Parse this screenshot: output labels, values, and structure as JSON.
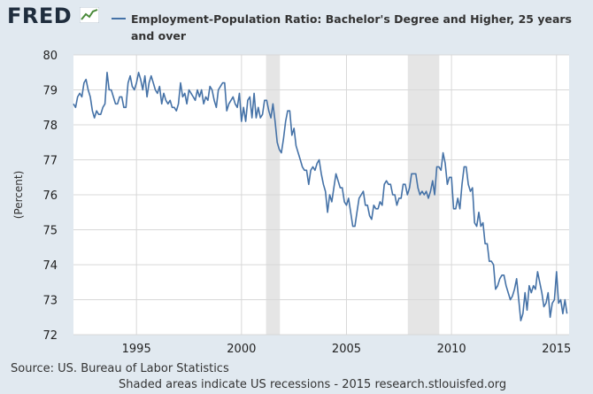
{
  "header": {
    "logo_text": "FRED",
    "logo_icon": "trend-line-icon"
  },
  "chart_data": {
    "type": "line",
    "title": "Employment-Population Ratio: Bachelor's Degree and Higher, 25 years and over",
    "ylabel": "(Percent)",
    "xlabel": "",
    "ylim": [
      72,
      80
    ],
    "xlim": [
      1992.0,
      2015.6
    ],
    "yticks": [
      72,
      73,
      74,
      75,
      76,
      77,
      78,
      79,
      80
    ],
    "xticks": [
      1995,
      2000,
      2005,
      2010,
      2015
    ],
    "grid": true,
    "line_color": "#4572a7",
    "recession_color": "#e5e5e5",
    "recessions": [
      [
        2001.17,
        2001.83
      ],
      [
        2007.92,
        2009.42
      ]
    ],
    "series": [
      {
        "name": "Employment-Population Ratio: Bachelor's Degree and Higher, 25 years and over",
        "points": [
          [
            1992.0,
            78.6
          ],
          [
            1992.1,
            78.5
          ],
          [
            1992.2,
            78.8
          ],
          [
            1992.3,
            78.9
          ],
          [
            1992.4,
            78.8
          ],
          [
            1992.5,
            79.2
          ],
          [
            1992.6,
            79.3
          ],
          [
            1992.7,
            79.0
          ],
          [
            1992.8,
            78.8
          ],
          [
            1992.9,
            78.4
          ],
          [
            1993.0,
            78.2
          ],
          [
            1993.1,
            78.4
          ],
          [
            1993.2,
            78.3
          ],
          [
            1993.3,
            78.3
          ],
          [
            1993.4,
            78.5
          ],
          [
            1993.5,
            78.6
          ],
          [
            1993.6,
            79.5
          ],
          [
            1993.7,
            79.0
          ],
          [
            1993.8,
            79.0
          ],
          [
            1993.9,
            78.8
          ],
          [
            1994.0,
            78.6
          ],
          [
            1994.1,
            78.6
          ],
          [
            1994.2,
            78.8
          ],
          [
            1994.3,
            78.8
          ],
          [
            1994.4,
            78.5
          ],
          [
            1994.5,
            78.5
          ],
          [
            1994.6,
            79.2
          ],
          [
            1994.7,
            79.4
          ],
          [
            1994.8,
            79.1
          ],
          [
            1994.9,
            79.0
          ],
          [
            1995.0,
            79.2
          ],
          [
            1995.1,
            79.5
          ],
          [
            1995.2,
            79.3
          ],
          [
            1995.3,
            79.0
          ],
          [
            1995.4,
            79.4
          ],
          [
            1995.5,
            78.8
          ],
          [
            1995.6,
            79.2
          ],
          [
            1995.7,
            79.4
          ],
          [
            1995.8,
            79.2
          ],
          [
            1995.9,
            79.0
          ],
          [
            1996.0,
            78.9
          ],
          [
            1996.1,
            79.1
          ],
          [
            1996.2,
            78.6
          ],
          [
            1996.3,
            78.9
          ],
          [
            1996.4,
            78.7
          ],
          [
            1996.5,
            78.6
          ],
          [
            1996.6,
            78.7
          ],
          [
            1996.7,
            78.5
          ],
          [
            1996.8,
            78.5
          ],
          [
            1996.9,
            78.4
          ],
          [
            1997.0,
            78.6
          ],
          [
            1997.1,
            79.2
          ],
          [
            1997.2,
            78.8
          ],
          [
            1997.3,
            78.9
          ],
          [
            1997.4,
            78.6
          ],
          [
            1997.5,
            79.0
          ],
          [
            1997.6,
            78.9
          ],
          [
            1997.7,
            78.8
          ],
          [
            1997.8,
            78.7
          ],
          [
            1997.9,
            79.0
          ],
          [
            1998.0,
            78.8
          ],
          [
            1998.1,
            79.0
          ],
          [
            1998.2,
            78.6
          ],
          [
            1998.3,
            78.8
          ],
          [
            1998.4,
            78.7
          ],
          [
            1998.5,
            79.1
          ],
          [
            1998.6,
            79.0
          ],
          [
            1998.7,
            78.7
          ],
          [
            1998.8,
            78.5
          ],
          [
            1998.9,
            79.0
          ],
          [
            1999.0,
            79.1
          ],
          [
            1999.1,
            79.2
          ],
          [
            1999.2,
            79.2
          ],
          [
            1999.3,
            78.4
          ],
          [
            1999.4,
            78.6
          ],
          [
            1999.5,
            78.7
          ],
          [
            1999.6,
            78.8
          ],
          [
            1999.7,
            78.6
          ],
          [
            1999.8,
            78.5
          ],
          [
            1999.9,
            78.9
          ],
          [
            2000.0,
            78.1
          ],
          [
            2000.1,
            78.5
          ],
          [
            2000.2,
            78.1
          ],
          [
            2000.3,
            78.7
          ],
          [
            2000.4,
            78.8
          ],
          [
            2000.5,
            78.2
          ],
          [
            2000.6,
            78.9
          ],
          [
            2000.7,
            78.2
          ],
          [
            2000.8,
            78.5
          ],
          [
            2000.9,
            78.2
          ],
          [
            2001.0,
            78.3
          ],
          [
            2001.1,
            78.7
          ],
          [
            2001.2,
            78.7
          ],
          [
            2001.3,
            78.4
          ],
          [
            2001.4,
            78.2
          ],
          [
            2001.5,
            78.6
          ],
          [
            2001.6,
            78.1
          ],
          [
            2001.7,
            77.5
          ],
          [
            2001.8,
            77.3
          ],
          [
            2001.9,
            77.2
          ],
          [
            2002.0,
            77.6
          ],
          [
            2002.1,
            78.1
          ],
          [
            2002.2,
            78.4
          ],
          [
            2002.3,
            78.4
          ],
          [
            2002.4,
            77.7
          ],
          [
            2002.5,
            77.9
          ],
          [
            2002.6,
            77.4
          ],
          [
            2002.7,
            77.2
          ],
          [
            2002.8,
            77.0
          ],
          [
            2002.9,
            76.8
          ],
          [
            2003.0,
            76.7
          ],
          [
            2003.1,
            76.7
          ],
          [
            2003.2,
            76.3
          ],
          [
            2003.3,
            76.7
          ],
          [
            2003.4,
            76.8
          ],
          [
            2003.5,
            76.7
          ],
          [
            2003.6,
            76.9
          ],
          [
            2003.7,
            77.0
          ],
          [
            2003.8,
            76.6
          ],
          [
            2003.9,
            76.3
          ],
          [
            2004.0,
            76.1
          ],
          [
            2004.1,
            75.5
          ],
          [
            2004.2,
            76.0
          ],
          [
            2004.3,
            75.8
          ],
          [
            2004.4,
            76.2
          ],
          [
            2004.5,
            76.6
          ],
          [
            2004.6,
            76.4
          ],
          [
            2004.7,
            76.2
          ],
          [
            2004.8,
            76.2
          ],
          [
            2004.9,
            75.8
          ],
          [
            2005.0,
            75.7
          ],
          [
            2005.1,
            75.9
          ],
          [
            2005.2,
            75.5
          ],
          [
            2005.3,
            75.1
          ],
          [
            2005.4,
            75.1
          ],
          [
            2005.5,
            75.5
          ],
          [
            2005.6,
            75.9
          ],
          [
            2005.7,
            76.0
          ],
          [
            2005.8,
            76.1
          ],
          [
            2005.9,
            75.7
          ],
          [
            2006.0,
            75.7
          ],
          [
            2006.1,
            75.4
          ],
          [
            2006.2,
            75.3
          ],
          [
            2006.3,
            75.7
          ],
          [
            2006.4,
            75.6
          ],
          [
            2006.5,
            75.6
          ],
          [
            2006.6,
            75.8
          ],
          [
            2006.7,
            75.7
          ],
          [
            2006.8,
            76.3
          ],
          [
            2006.9,
            76.4
          ],
          [
            2007.0,
            76.3
          ],
          [
            2007.1,
            76.3
          ],
          [
            2007.2,
            76.0
          ],
          [
            2007.3,
            76.0
          ],
          [
            2007.4,
            75.7
          ],
          [
            2007.5,
            75.9
          ],
          [
            2007.6,
            75.9
          ],
          [
            2007.7,
            76.3
          ],
          [
            2007.8,
            76.3
          ],
          [
            2007.9,
            76.0
          ],
          [
            2008.0,
            76.2
          ],
          [
            2008.1,
            76.6
          ],
          [
            2008.2,
            76.6
          ],
          [
            2008.3,
            76.6
          ],
          [
            2008.4,
            76.2
          ],
          [
            2008.5,
            76.0
          ],
          [
            2008.6,
            76.1
          ],
          [
            2008.7,
            76.0
          ],
          [
            2008.8,
            76.1
          ],
          [
            2008.9,
            75.9
          ],
          [
            2009.0,
            76.1
          ],
          [
            2009.1,
            76.4
          ],
          [
            2009.2,
            76.0
          ],
          [
            2009.3,
            76.8
          ],
          [
            2009.4,
            76.8
          ],
          [
            2009.5,
            76.7
          ],
          [
            2009.6,
            77.2
          ],
          [
            2009.7,
            76.9
          ],
          [
            2009.8,
            76.3
          ],
          [
            2009.9,
            76.5
          ],
          [
            2010.0,
            76.5
          ],
          [
            2010.1,
            75.6
          ],
          [
            2010.2,
            75.6
          ],
          [
            2010.3,
            75.9
          ],
          [
            2010.4,
            75.6
          ],
          [
            2010.5,
            76.3
          ],
          [
            2010.6,
            76.8
          ],
          [
            2010.7,
            76.8
          ],
          [
            2010.8,
            76.3
          ],
          [
            2010.9,
            76.1
          ],
          [
            2011.0,
            76.2
          ],
          [
            2011.1,
            75.2
          ],
          [
            2011.2,
            75.1
          ],
          [
            2011.3,
            75.5
          ],
          [
            2011.4,
            75.1
          ],
          [
            2011.5,
            75.2
          ],
          [
            2011.6,
            74.6
          ],
          [
            2011.7,
            74.6
          ],
          [
            2011.8,
            74.1
          ],
          [
            2011.9,
            74.1
          ],
          [
            2012.0,
            74.0
          ],
          [
            2012.1,
            73.3
          ],
          [
            2012.2,
            73.4
          ],
          [
            2012.3,
            73.6
          ],
          [
            2012.4,
            73.7
          ],
          [
            2012.5,
            73.7
          ],
          [
            2012.6,
            73.4
          ],
          [
            2012.7,
            73.2
          ],
          [
            2012.8,
            73.0
          ],
          [
            2012.9,
            73.1
          ],
          [
            2013.0,
            73.3
          ],
          [
            2013.1,
            73.6
          ],
          [
            2013.2,
            73.0
          ],
          [
            2013.3,
            72.4
          ],
          [
            2013.4,
            72.6
          ],
          [
            2013.5,
            73.2
          ],
          [
            2013.6,
            72.7
          ],
          [
            2013.7,
            73.4
          ],
          [
            2013.8,
            73.2
          ],
          [
            2013.9,
            73.4
          ],
          [
            2014.0,
            73.3
          ],
          [
            2014.1,
            73.8
          ],
          [
            2014.2,
            73.5
          ],
          [
            2014.3,
            73.2
          ],
          [
            2014.4,
            72.8
          ],
          [
            2014.5,
            72.9
          ],
          [
            2014.6,
            73.2
          ],
          [
            2014.7,
            72.5
          ],
          [
            2014.8,
            72.9
          ],
          [
            2014.9,
            73.0
          ],
          [
            2015.0,
            73.8
          ],
          [
            2015.1,
            72.9
          ],
          [
            2015.2,
            73.0
          ],
          [
            2015.3,
            72.6
          ],
          [
            2015.4,
            73.0
          ],
          [
            2015.5,
            72.6
          ]
        ]
      }
    ]
  },
  "footer": {
    "source": "Source: US. Bureau of Labor Statistics",
    "note": "Shaded areas indicate US recessions - 2015 research.stlouisfed.org"
  }
}
